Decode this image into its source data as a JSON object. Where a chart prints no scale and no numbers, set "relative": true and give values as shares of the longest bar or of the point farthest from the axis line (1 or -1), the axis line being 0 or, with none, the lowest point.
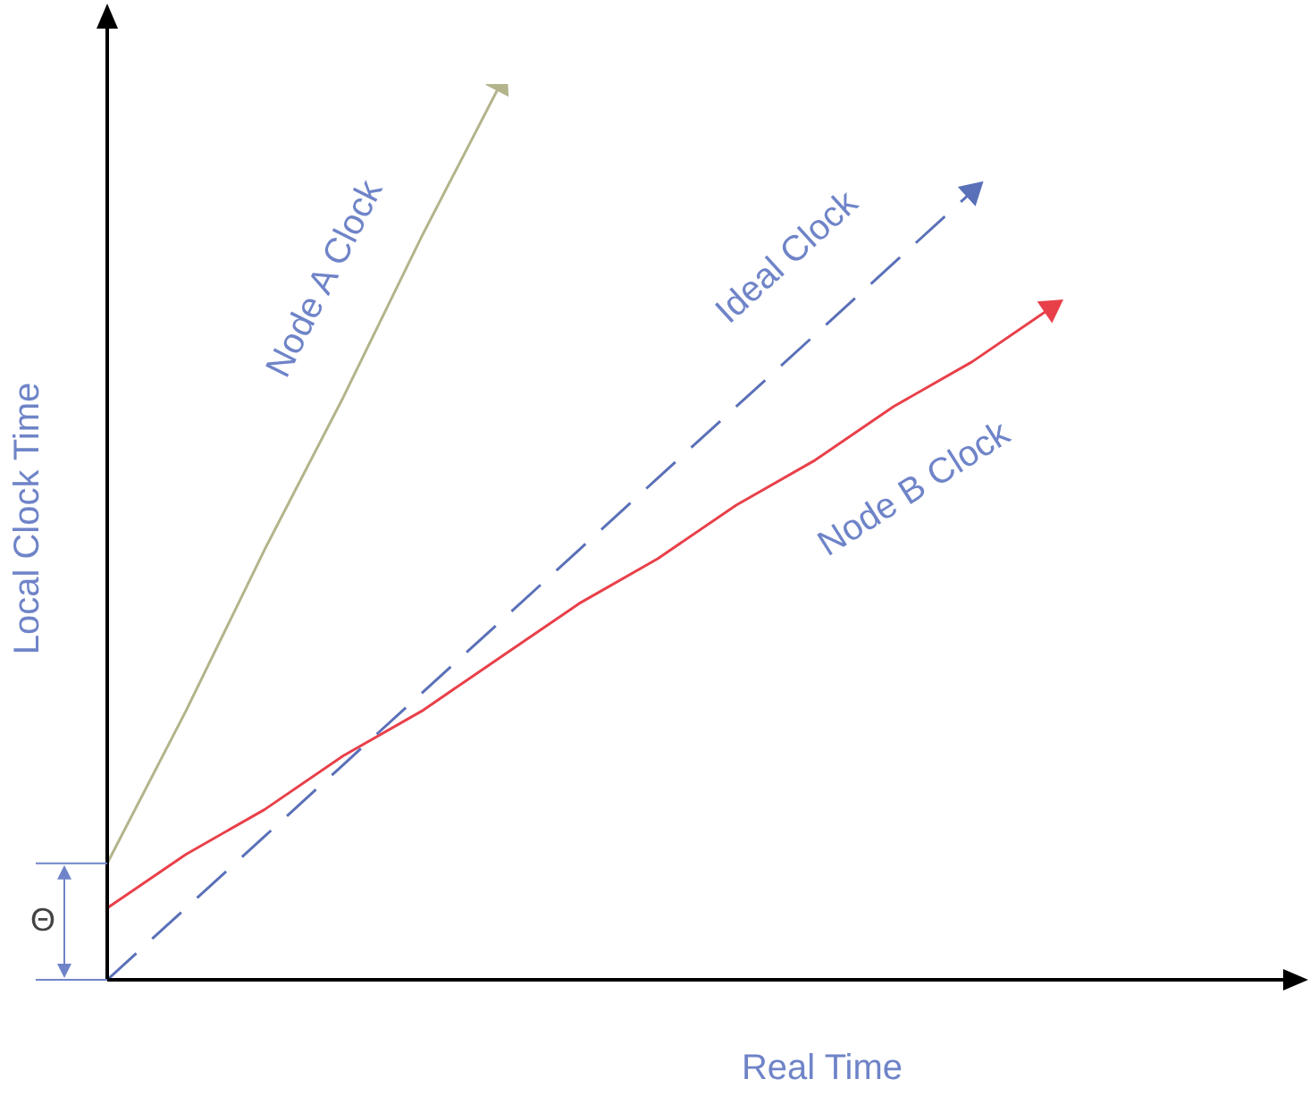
{
  "chart_data": {
    "type": "line",
    "relative": true,
    "xlabel": "Real Time",
    "ylabel": "Local Clock Time",
    "annotations": [
      "Θ"
    ],
    "legend": false,
    "marker": "none",
    "categories": [
      null,
      null,
      null,
      null,
      null,
      null,
      null,
      null,
      null,
      null,
      null,
      null,
      null,
      null,
      null,
      null
    ],
    "series": [
      {
        "name": "Node A Clock",
        "color": "#b4b48c",
        "values": [
          0.13,
          0.3,
          0.48,
          0.65,
          0.83,
          1.0,
          null,
          null,
          null,
          null,
          null,
          null,
          null,
          null,
          null,
          null
        ]
      },
      {
        "name": "Ideal Clock",
        "color": "#5a70b8",
        "line_style": "dashed",
        "values": [
          0,
          0.08,
          0.16,
          0.24,
          0.32,
          0.4,
          0.48,
          0.56,
          0.64,
          0.72,
          0.8,
          0.88,
          null,
          null,
          null,
          null
        ]
      },
      {
        "name": "Node B Clock",
        "color": "#e8404a",
        "values": [
          0.08,
          0.14,
          0.19,
          0.25,
          0.3,
          0.36,
          0.42,
          0.47,
          0.53,
          0.58,
          0.64,
          0.69,
          0.75,
          null,
          null,
          null
        ]
      }
    ]
  }
}
